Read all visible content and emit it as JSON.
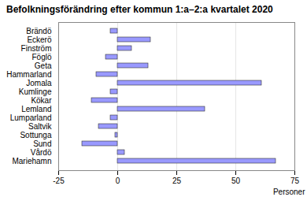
{
  "chart_data": {
    "type": "bar",
    "orientation": "horizontal",
    "title": "Befolkningsförändring efter kommun 1:a–2:a kvartalet 2020",
    "x_label": "Personer",
    "categories": [
      "Brändö",
      "Eckerö",
      "Finström",
      "Föglö",
      "Geta",
      "Hammarland",
      "Jomala",
      "Kumlinge",
      "Kökar",
      "Lemland",
      "Lumparland",
      "Saltvik",
      "Sottunga",
      "Sund",
      "Vårdö",
      "Mariehamn"
    ],
    "values": [
      -3,
      14,
      6,
      -5,
      13,
      -9,
      61,
      -3,
      -11,
      37,
      -3,
      -8,
      -1,
      -15,
      3,
      67
    ],
    "color": "#9999ff",
    "xlim": [
      -25,
      75
    ],
    "xticks": [
      -25,
      0,
      25,
      50,
      75
    ],
    "grid": true
  }
}
